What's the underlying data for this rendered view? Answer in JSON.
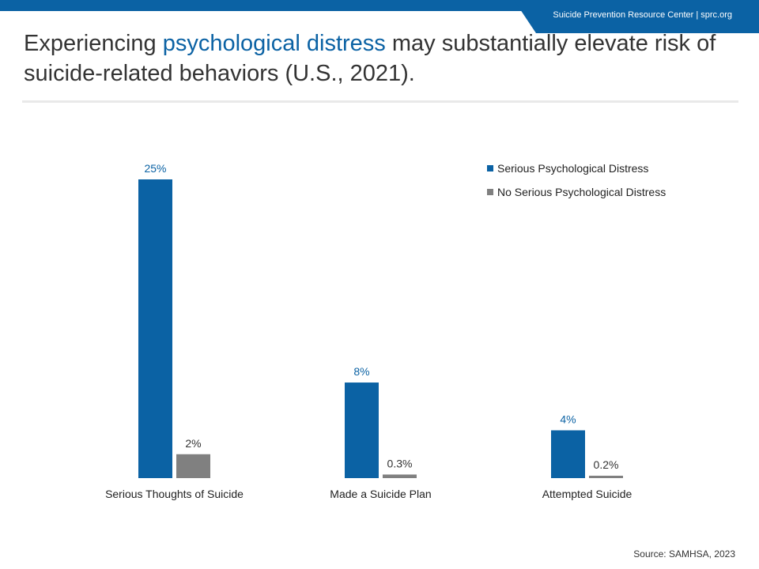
{
  "header": {
    "org_label": "Suicide Prevention Resource Center  | sprc.org",
    "title_prefix": "Experiencing ",
    "title_highlight": "psychological distress",
    "title_suffix": " may substantially elevate risk of suicide-related behaviors (U.S., 2021)."
  },
  "colors": {
    "primary_blue": "#0B62A4",
    "gray": "#808080"
  },
  "chart_data": {
    "type": "bar",
    "categories": [
      "Serious Thoughts of Suicide",
      "Made a Suicide Plan",
      "Attempted Suicide"
    ],
    "series": [
      {
        "name": "Serious Psychological Distress",
        "color": "#0B62A4",
        "values": [
          25,
          8,
          4
        ],
        "labels": [
          "25%",
          "8%",
          "4%"
        ]
      },
      {
        "name": "No Serious Psychological Distress",
        "color": "#808080",
        "values": [
          2,
          0.3,
          0.2
        ],
        "labels": [
          "2%",
          "0.3%",
          "0.2%"
        ]
      }
    ],
    "ylim": [
      0,
      25
    ],
    "grid": false,
    "legend_position": "top-right"
  },
  "footer": {
    "source": "Source: SAMHSA, 2023"
  }
}
